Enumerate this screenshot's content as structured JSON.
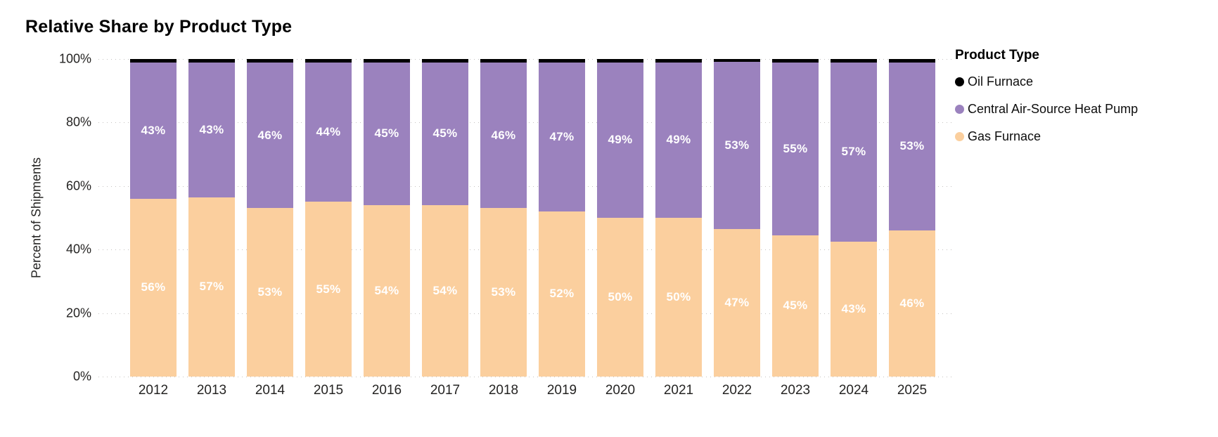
{
  "title": "Relative Share by Product Type",
  "y_axis": {
    "title": "Percent of Shipments",
    "ticks": [
      "100%",
      "80%",
      "60%",
      "40%",
      "20%",
      "0%"
    ]
  },
  "x_axis": {
    "labels": [
      "2012",
      "2013",
      "2014",
      "2015",
      "2016",
      "2017",
      "2018",
      "2019",
      "2020",
      "2021",
      "2022",
      "2023",
      "2024",
      "2025"
    ]
  },
  "legend": {
    "title": "Product Type",
    "items": [
      {
        "label": "Oil Furnace",
        "color": "#000000"
      },
      {
        "label": "Central Air-Source Heat Pump",
        "color": "#9b82be"
      },
      {
        "label": "Gas Furnace",
        "color": "#fbcf9e"
      }
    ]
  },
  "colors": {
    "grid": "#c4c2c0",
    "axis_text": "#252423",
    "data_label": "#ffffff"
  },
  "chart_data": {
    "type": "bar",
    "stacked": true,
    "title": "Relative Share by Product Type",
    "ylabel": "Percent of Shipments",
    "ylim": [
      0,
      100
    ],
    "value_format": "percent",
    "grid": true,
    "legend_position": "right",
    "categories": [
      2012,
      2013,
      2014,
      2015,
      2016,
      2017,
      2018,
      2019,
      2020,
      2021,
      2022,
      2023,
      2024,
      2025
    ],
    "series": [
      {
        "name": "Oil Furnace",
        "color": "#000000",
        "show_labels": false,
        "values": [
          1,
          1,
          1,
          1,
          1,
          1,
          1,
          1,
          1,
          1,
          1,
          1,
          1,
          1
        ]
      },
      {
        "name": "Central Air-Source Heat Pump",
        "color": "#9b82be",
        "show_labels": true,
        "values": [
          43,
          43,
          46,
          44,
          45,
          45,
          46,
          47,
          49,
          49,
          53,
          55,
          57,
          53
        ]
      },
      {
        "name": "Gas Furnace",
        "color": "#fbcf9e",
        "show_labels": true,
        "values": [
          56,
          57,
          53,
          55,
          54,
          54,
          53,
          52,
          50,
          50,
          47,
          45,
          43,
          46
        ]
      }
    ]
  }
}
